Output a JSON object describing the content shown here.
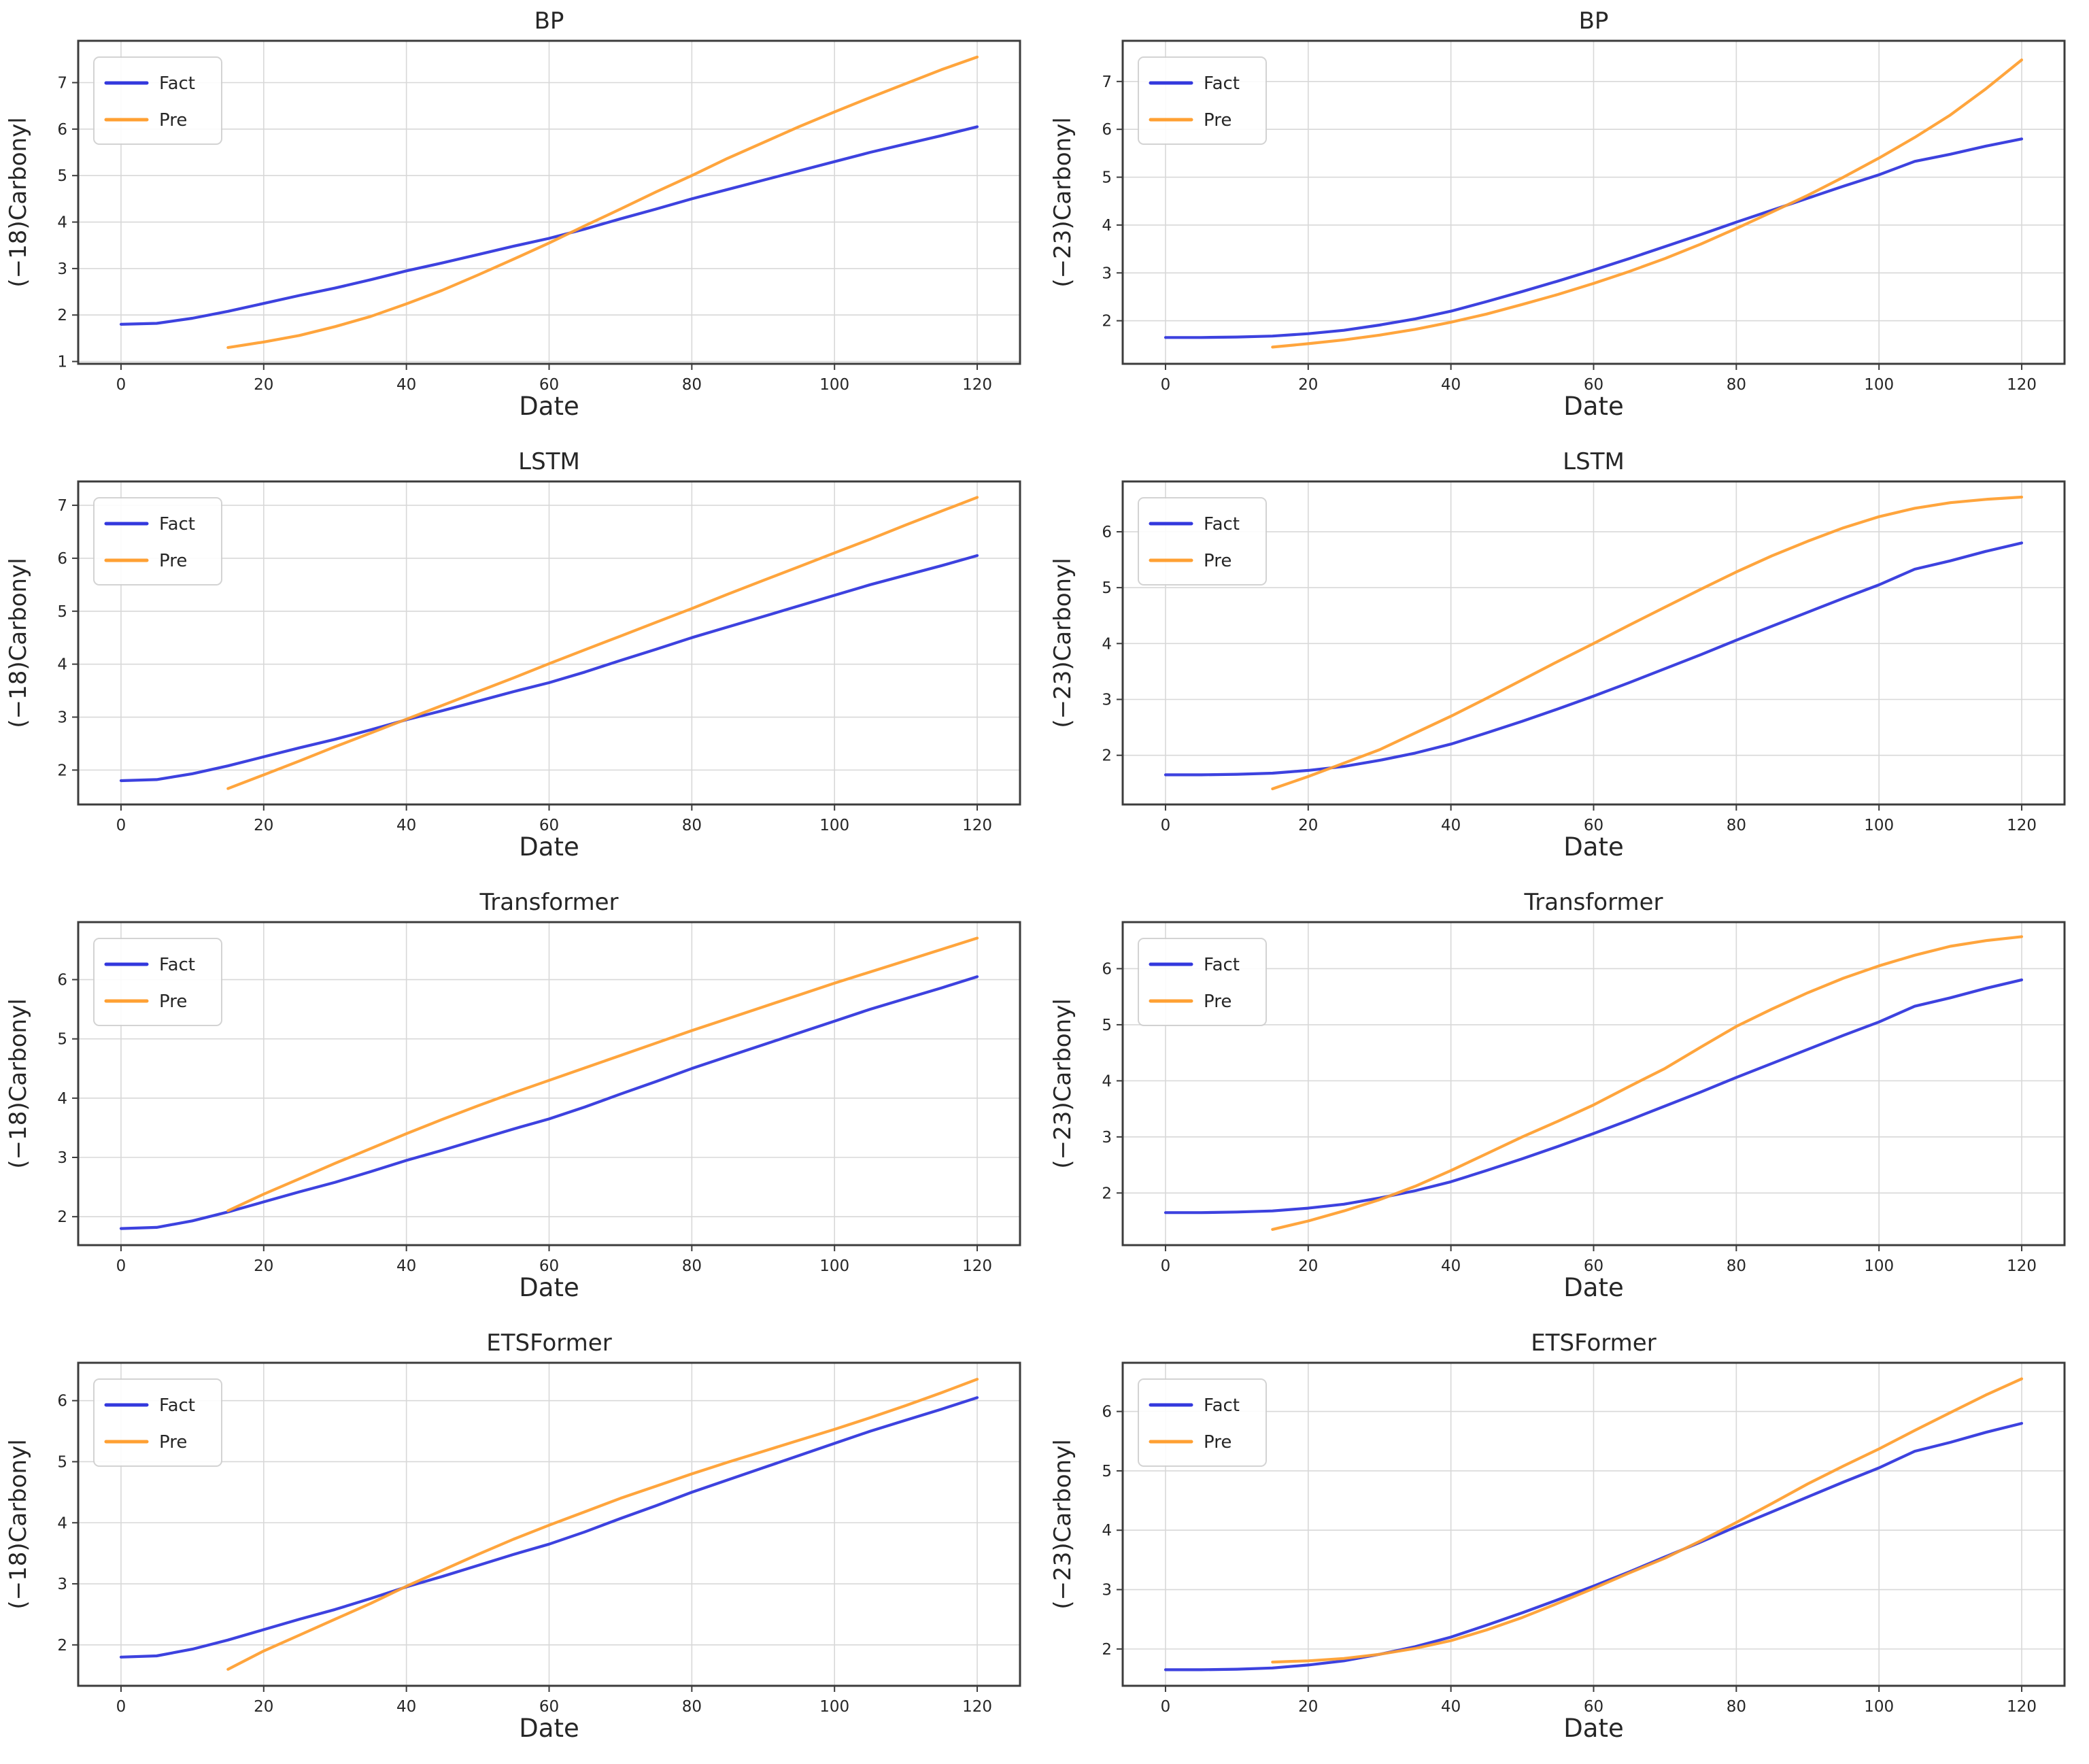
{
  "figure": {
    "background": "#ffffff",
    "rows": 4,
    "cols": 2
  },
  "style": {
    "fact_color": "#3338dd",
    "pre_color": "#ffa033",
    "grid_color": "#d8d8d8",
    "spine_color": "#3c3c3c",
    "text_color": "#262626",
    "legend_border": "#cfcfcf",
    "legend_bg": "#ffffff"
  },
  "legend": {
    "fact_label": "Fact",
    "pre_label": "Pre",
    "position": "upper left"
  },
  "chart_data": [
    {
      "type": "line",
      "title": "BP",
      "xlabel": "Date",
      "ylabel": "(−18)Carbonyl",
      "xlim": [
        -6,
        126
      ],
      "ylim": [
        0.95,
        7.9
      ],
      "xticks": [
        0,
        20,
        40,
        60,
        80,
        100,
        120
      ],
      "yticks": [
        1,
        2,
        3,
        4,
        5,
        6,
        7
      ],
      "grid": true,
      "legend_position": "upper left",
      "series": [
        {
          "name": "Fact",
          "x": [
            0,
            5,
            10,
            15,
            20,
            25,
            30,
            35,
            40,
            45,
            50,
            55,
            60,
            65,
            70,
            75,
            80,
            85,
            90,
            95,
            100,
            105,
            110,
            115,
            120
          ],
          "y": [
            1.8,
            1.82,
            1.93,
            2.08,
            2.25,
            2.42,
            2.58,
            2.76,
            2.95,
            3.12,
            3.3,
            3.48,
            3.65,
            3.85,
            4.07,
            4.28,
            4.5,
            4.7,
            4.9,
            5.1,
            5.3,
            5.5,
            5.68,
            5.86,
            6.05
          ]
        },
        {
          "name": "Pre",
          "x": [
            15,
            20,
            25,
            30,
            35,
            40,
            45,
            50,
            55,
            60,
            65,
            70,
            75,
            80,
            85,
            90,
            95,
            100,
            105,
            110,
            115,
            120
          ],
          "y": [
            1.3,
            1.42,
            1.56,
            1.75,
            1.97,
            2.24,
            2.53,
            2.86,
            3.2,
            3.55,
            3.92,
            4.28,
            4.65,
            5.0,
            5.37,
            5.71,
            6.05,
            6.37,
            6.68,
            6.98,
            7.28,
            7.55
          ]
        }
      ]
    },
    {
      "type": "line",
      "title": "BP",
      "xlabel": "Date",
      "ylabel": "(−23)Carbonyl",
      "xlim": [
        -6,
        126
      ],
      "ylim": [
        1.1,
        7.85
      ],
      "xticks": [
        0,
        20,
        40,
        60,
        80,
        100,
        120
      ],
      "yticks": [
        2,
        3,
        4,
        5,
        6,
        7
      ],
      "grid": true,
      "legend_position": "upper left",
      "series": [
        {
          "name": "Fact",
          "x": [
            0,
            5,
            10,
            15,
            20,
            25,
            30,
            35,
            40,
            45,
            50,
            55,
            60,
            65,
            70,
            75,
            80,
            85,
            90,
            95,
            100,
            105,
            110,
            115,
            120
          ],
          "y": [
            1.65,
            1.65,
            1.66,
            1.68,
            1.73,
            1.8,
            1.91,
            2.04,
            2.2,
            2.4,
            2.61,
            2.83,
            3.06,
            3.3,
            3.55,
            3.8,
            4.06,
            4.31,
            4.56,
            4.81,
            5.05,
            5.33,
            5.48,
            5.65,
            5.8
          ]
        },
        {
          "name": "Pre",
          "x": [
            15,
            20,
            25,
            30,
            35,
            40,
            45,
            50,
            55,
            60,
            65,
            70,
            75,
            80,
            85,
            90,
            95,
            100,
            105,
            110,
            115,
            120
          ],
          "y": [
            1.45,
            1.52,
            1.6,
            1.7,
            1.82,
            1.97,
            2.14,
            2.34,
            2.55,
            2.78,
            3.03,
            3.3,
            3.6,
            3.93,
            4.27,
            4.62,
            5.0,
            5.4,
            5.83,
            6.3,
            6.85,
            7.45
          ]
        }
      ]
    },
    {
      "type": "line",
      "title": "LSTM",
      "xlabel": "Date",
      "ylabel": "(−18)Carbonyl",
      "xlim": [
        -6,
        126
      ],
      "ylim": [
        1.35,
        7.45
      ],
      "xticks": [
        0,
        20,
        40,
        60,
        80,
        100,
        120
      ],
      "yticks": [
        2,
        3,
        4,
        5,
        6,
        7
      ],
      "grid": true,
      "legend_position": "upper left",
      "series": [
        {
          "name": "Fact",
          "x": [
            0,
            5,
            10,
            15,
            20,
            25,
            30,
            35,
            40,
            45,
            50,
            55,
            60,
            65,
            70,
            75,
            80,
            85,
            90,
            95,
            100,
            105,
            110,
            115,
            120
          ],
          "y": [
            1.8,
            1.82,
            1.93,
            2.08,
            2.25,
            2.42,
            2.58,
            2.76,
            2.95,
            3.12,
            3.3,
            3.48,
            3.65,
            3.85,
            4.07,
            4.28,
            4.5,
            4.7,
            4.9,
            5.1,
            5.3,
            5.5,
            5.68,
            5.86,
            6.05
          ]
        },
        {
          "name": "Pre",
          "x": [
            15,
            20,
            25,
            30,
            35,
            40,
            45,
            50,
            55,
            60,
            65,
            70,
            75,
            80,
            85,
            90,
            95,
            100,
            105,
            110,
            115,
            120
          ],
          "y": [
            1.65,
            1.91,
            2.17,
            2.44,
            2.7,
            2.96,
            3.22,
            3.48,
            3.74,
            4.01,
            4.27,
            4.53,
            4.79,
            5.05,
            5.32,
            5.58,
            5.84,
            6.1,
            6.36,
            6.63,
            6.89,
            7.15
          ]
        }
      ]
    },
    {
      "type": "line",
      "title": "LSTM",
      "xlabel": "Date",
      "ylabel": "(−23)Carbonyl",
      "xlim": [
        -6,
        126
      ],
      "ylim": [
        1.12,
        6.9
      ],
      "xticks": [
        0,
        20,
        40,
        60,
        80,
        100,
        120
      ],
      "yticks": [
        2,
        3,
        4,
        5,
        6
      ],
      "grid": true,
      "legend_position": "upper left",
      "series": [
        {
          "name": "Fact",
          "x": [
            0,
            5,
            10,
            15,
            20,
            25,
            30,
            35,
            40,
            45,
            50,
            55,
            60,
            65,
            70,
            75,
            80,
            85,
            90,
            95,
            100,
            105,
            110,
            115,
            120
          ],
          "y": [
            1.65,
            1.65,
            1.66,
            1.68,
            1.73,
            1.8,
            1.91,
            2.04,
            2.2,
            2.4,
            2.61,
            2.83,
            3.06,
            3.3,
            3.55,
            3.8,
            4.06,
            4.31,
            4.56,
            4.81,
            5.05,
            5.33,
            5.48,
            5.65,
            5.8
          ]
        },
        {
          "name": "Pre",
          "x": [
            15,
            20,
            25,
            30,
            35,
            40,
            45,
            50,
            55,
            60,
            65,
            70,
            75,
            80,
            85,
            90,
            95,
            100,
            105,
            110,
            115,
            120
          ],
          "y": [
            1.4,
            1.62,
            1.86,
            2.1,
            2.4,
            2.7,
            3.02,
            3.35,
            3.68,
            4.0,
            4.33,
            4.65,
            4.97,
            5.28,
            5.57,
            5.83,
            6.07,
            6.27,
            6.42,
            6.52,
            6.58,
            6.62
          ]
        }
      ]
    },
    {
      "type": "line",
      "title": "Transformer",
      "xlabel": "Date",
      "ylabel": "(−18)Carbonyl",
      "xlim": [
        -6,
        126
      ],
      "ylim": [
        1.52,
        6.97
      ],
      "xticks": [
        0,
        20,
        40,
        60,
        80,
        100,
        120
      ],
      "yticks": [
        2,
        3,
        4,
        5,
        6
      ],
      "grid": true,
      "legend_position": "upper left",
      "series": [
        {
          "name": "Fact",
          "x": [
            0,
            5,
            10,
            15,
            20,
            25,
            30,
            35,
            40,
            45,
            50,
            55,
            60,
            65,
            70,
            75,
            80,
            85,
            90,
            95,
            100,
            105,
            110,
            115,
            120
          ],
          "y": [
            1.8,
            1.82,
            1.93,
            2.08,
            2.25,
            2.42,
            2.58,
            2.76,
            2.95,
            3.12,
            3.3,
            3.48,
            3.65,
            3.85,
            4.07,
            4.28,
            4.5,
            4.7,
            4.9,
            5.1,
            5.3,
            5.5,
            5.68,
            5.86,
            6.05
          ]
        },
        {
          "name": "Pre",
          "x": [
            15,
            20,
            25,
            30,
            35,
            40,
            45,
            50,
            55,
            60,
            65,
            70,
            75,
            80,
            85,
            90,
            95,
            100,
            105,
            110,
            115,
            120
          ],
          "y": [
            2.1,
            2.38,
            2.64,
            2.9,
            3.15,
            3.4,
            3.64,
            3.87,
            4.09,
            4.3,
            4.51,
            4.72,
            4.93,
            5.14,
            5.34,
            5.54,
            5.74,
            5.94,
            6.13,
            6.32,
            6.51,
            6.7
          ]
        }
      ]
    },
    {
      "type": "line",
      "title": "Transformer",
      "xlabel": "Date",
      "ylabel": "(−23)Carbonyl",
      "xlim": [
        -6,
        126
      ],
      "ylim": [
        1.07,
        6.83
      ],
      "xticks": [
        0,
        20,
        40,
        60,
        80,
        100,
        120
      ],
      "yticks": [
        2,
        3,
        4,
        5,
        6
      ],
      "grid": true,
      "legend_position": "upper left",
      "series": [
        {
          "name": "Fact",
          "x": [
            0,
            5,
            10,
            15,
            20,
            25,
            30,
            35,
            40,
            45,
            50,
            55,
            60,
            65,
            70,
            75,
            80,
            85,
            90,
            95,
            100,
            105,
            110,
            115,
            120
          ],
          "y": [
            1.65,
            1.65,
            1.66,
            1.68,
            1.73,
            1.8,
            1.91,
            2.04,
            2.2,
            2.4,
            2.61,
            2.83,
            3.06,
            3.3,
            3.55,
            3.8,
            4.06,
            4.31,
            4.56,
            4.81,
            5.05,
            5.33,
            5.48,
            5.65,
            5.8
          ]
        },
        {
          "name": "Pre",
          "x": [
            15,
            20,
            25,
            30,
            35,
            40,
            45,
            50,
            55,
            60,
            65,
            70,
            75,
            80,
            85,
            90,
            95,
            100,
            105,
            110,
            115,
            120
          ],
          "y": [
            1.35,
            1.5,
            1.68,
            1.88,
            2.12,
            2.4,
            2.7,
            3.0,
            3.28,
            3.57,
            3.9,
            4.22,
            4.6,
            4.97,
            5.28,
            5.57,
            5.83,
            6.05,
            6.24,
            6.4,
            6.5,
            6.57
          ]
        }
      ]
    },
    {
      "type": "line",
      "title": "ETSFormer",
      "xlabel": "Date",
      "ylabel": "(−18)Carbonyl",
      "xlim": [
        -6,
        126
      ],
      "ylim": [
        1.33,
        6.62
      ],
      "xticks": [
        0,
        20,
        40,
        60,
        80,
        100,
        120
      ],
      "yticks": [
        2,
        3,
        4,
        5,
        6
      ],
      "grid": true,
      "legend_position": "upper left",
      "series": [
        {
          "name": "Fact",
          "x": [
            0,
            5,
            10,
            15,
            20,
            25,
            30,
            35,
            40,
            45,
            50,
            55,
            60,
            65,
            70,
            75,
            80,
            85,
            90,
            95,
            100,
            105,
            110,
            115,
            120
          ],
          "y": [
            1.8,
            1.82,
            1.93,
            2.08,
            2.25,
            2.42,
            2.58,
            2.76,
            2.95,
            3.12,
            3.3,
            3.48,
            3.65,
            3.85,
            4.07,
            4.28,
            4.5,
            4.7,
            4.9,
            5.1,
            5.3,
            5.5,
            5.68,
            5.86,
            6.05
          ]
        },
        {
          "name": "Pre",
          "x": [
            15,
            20,
            25,
            30,
            35,
            40,
            45,
            50,
            55,
            60,
            65,
            70,
            75,
            80,
            85,
            90,
            95,
            100,
            105,
            110,
            115,
            120
          ],
          "y": [
            1.6,
            1.9,
            2.16,
            2.42,
            2.68,
            2.96,
            3.22,
            3.48,
            3.73,
            3.96,
            4.18,
            4.4,
            4.6,
            4.8,
            4.99,
            5.17,
            5.35,
            5.53,
            5.72,
            5.92,
            6.13,
            6.35
          ]
        }
      ]
    },
    {
      "type": "line",
      "title": "ETSFormer",
      "xlabel": "Date",
      "ylabel": "(−23)Carbonyl",
      "xlim": [
        -6,
        126
      ],
      "ylim": [
        1.38,
        6.82
      ],
      "xticks": [
        0,
        20,
        40,
        60,
        80,
        100,
        120
      ],
      "yticks": [
        2,
        3,
        4,
        5,
        6
      ],
      "grid": true,
      "legend_position": "upper left",
      "series": [
        {
          "name": "Fact",
          "x": [
            0,
            5,
            10,
            15,
            20,
            25,
            30,
            35,
            40,
            45,
            50,
            55,
            60,
            65,
            70,
            75,
            80,
            85,
            90,
            95,
            100,
            105,
            110,
            115,
            120
          ],
          "y": [
            1.65,
            1.65,
            1.66,
            1.68,
            1.73,
            1.8,
            1.91,
            2.04,
            2.2,
            2.4,
            2.61,
            2.83,
            3.06,
            3.3,
            3.55,
            3.8,
            4.06,
            4.31,
            4.56,
            4.81,
            5.05,
            5.33,
            5.48,
            5.65,
            5.8
          ]
        },
        {
          "name": "Pre",
          "x": [
            15,
            20,
            25,
            30,
            35,
            40,
            45,
            50,
            55,
            60,
            65,
            70,
            75,
            80,
            85,
            90,
            95,
            100,
            105,
            110,
            115,
            120
          ],
          "y": [
            1.78,
            1.8,
            1.84,
            1.91,
            2.01,
            2.14,
            2.32,
            2.53,
            2.77,
            3.02,
            3.28,
            3.53,
            3.82,
            4.13,
            4.45,
            4.78,
            5.08,
            5.37,
            5.68,
            5.98,
            6.28,
            6.55
          ]
        }
      ]
    }
  ]
}
